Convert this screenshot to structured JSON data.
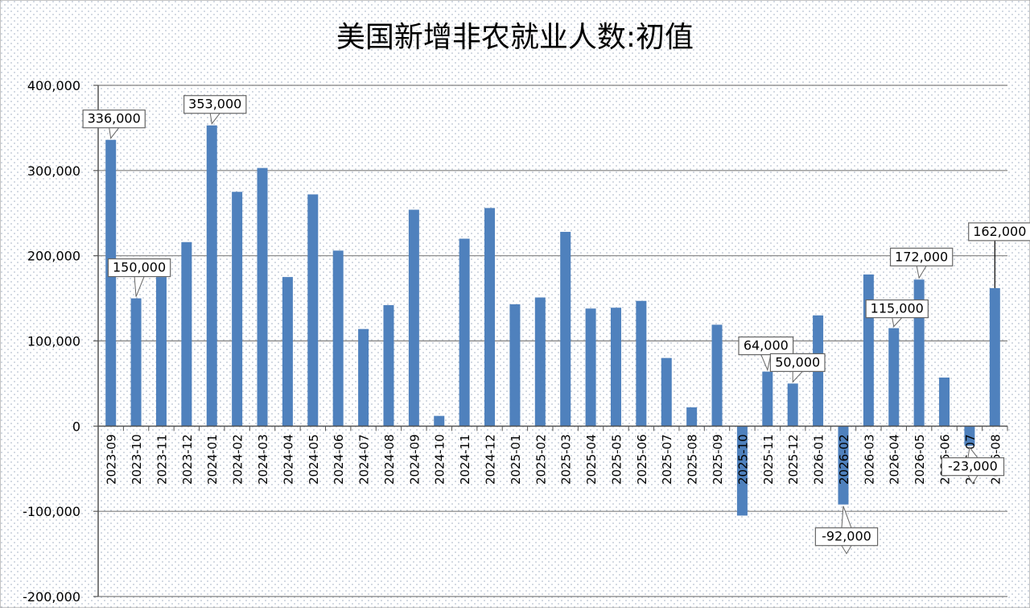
{
  "chart_data": {
    "type": "bar",
    "title": "美国新增非农就业人数:初值",
    "xlabel": "",
    "ylabel": "",
    "ylim": [
      -200000,
      400000
    ],
    "yticks": [
      -200000,
      -100000,
      0,
      100000,
      200000,
      300000,
      400000
    ],
    "ytick_labels": [
      "-200,000",
      "-100,000",
      "0",
      "100,000",
      "200,000",
      "300,000",
      "400,000"
    ],
    "grid": true,
    "bar_color": "#4F81BD",
    "categories": [
      "2023-09",
      "2023-10",
      "2023-11",
      "2023-12",
      "2024-01",
      "2024-02",
      "2024-03",
      "2024-04",
      "2024-05",
      "2024-06",
      "2024-07",
      "2024-08",
      "2024-09",
      "2024-10",
      "2024-11",
      "2024-12",
      "2025-01",
      "2025-02",
      "2025-03",
      "2025-04",
      "2025-05",
      "2025-06",
      "2025-07",
      "2025-08",
      "2025-09",
      "2025-10",
      "2025-11",
      "2025-12",
      "2026-01",
      "2026-02",
      "2026-03",
      "2026-04",
      "2026-05",
      "2026-06",
      "2026-07",
      "2026-08"
    ],
    "values": [
      336000,
      150000,
      175000,
      216000,
      353000,
      275000,
      303000,
      175000,
      272000,
      206000,
      114000,
      142000,
      254000,
      12000,
      220000,
      256000,
      143000,
      151000,
      228000,
      138000,
      139000,
      147000,
      80000,
      22000,
      119000,
      -105000,
      64000,
      50000,
      130000,
      -92000,
      178000,
      115000,
      172000,
      57000,
      -23000,
      162000
    ],
    "annotations": [
      {
        "category": "2023-09",
        "value": 336000,
        "label": "336,000"
      },
      {
        "category": "2023-10",
        "value": 150000,
        "label": "150,000"
      },
      {
        "category": "2024-01",
        "value": 353000,
        "label": "353,000"
      },
      {
        "category": "2025-11",
        "value": 64000,
        "label": "64,000"
      },
      {
        "category": "2025-12",
        "value": 50000,
        "label": "50,000"
      },
      {
        "category": "2026-02",
        "value": -92000,
        "label": "-92,000"
      },
      {
        "category": "2026-04",
        "value": 115000,
        "label": "115,000"
      },
      {
        "category": "2026-05",
        "value": 172000,
        "label": "172,000"
      },
      {
        "category": "2026-07",
        "value": -23000,
        "label": "-23,000"
      },
      {
        "category": "2026-08",
        "value": 162000,
        "label": "162,000"
      }
    ]
  }
}
